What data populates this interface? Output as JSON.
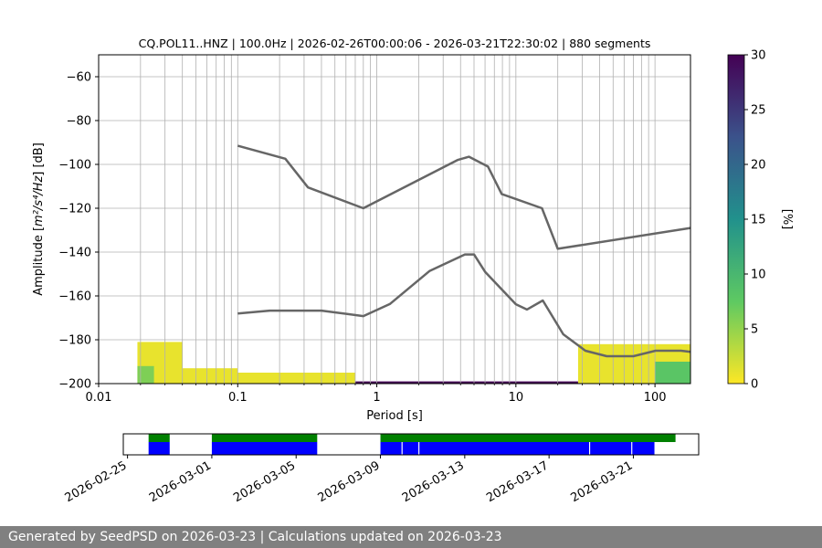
{
  "footer": {
    "text": "Generated by SeedPSD on 2026-03-23 | Calculations updated on 2026-03-23"
  },
  "colors": {
    "noise_model": "#666666",
    "grid": "#b0b0b0",
    "data_available": "#008000",
    "data_used": "#0000ff",
    "colorbar": [
      "#fde725",
      "#5ec962",
      "#21918c",
      "#3b528b",
      "#440154"
    ]
  },
  "chart_data": [
    {
      "type": "heatmap",
      "title": "CQ.POL11..HNZ | 100.0Hz | 2026-02-26T00:00:06 - 2026-03-21T22:30:02 | 880 segments",
      "xlabel": "Period [s]",
      "ylabel_prefix": "Amplitude [",
      "ylabel_math": "m²/s⁴/Hz",
      "ylabel_suffix": "] [dB]",
      "x_scale": "log",
      "xlim": [
        0.01,
        180
      ],
      "ylim": [
        -200,
        -50
      ],
      "x_ticks": [
        0.01,
        0.1,
        1,
        10,
        100
      ],
      "x_tick_labels": [
        "0.01",
        "0.1",
        "1",
        "10",
        "100"
      ],
      "y_ticks": [
        -200,
        -180,
        -160,
        -140,
        -120,
        -100,
        -80,
        -60
      ],
      "y_tick_labels": [
        "−200",
        "−180",
        "−160",
        "−140",
        "−120",
        "−100",
        "−80",
        "−60"
      ],
      "grid": true,
      "colorbar": {
        "label": "[%]",
        "range": [
          0,
          30
        ],
        "ticks": [
          0,
          5,
          10,
          15,
          20,
          25,
          30
        ],
        "tick_labels": [
          "0",
          "5",
          "10",
          "15",
          "20",
          "25",
          "30"
        ]
      },
      "noise_models": [
        {
          "name": "NHNM",
          "x": [
            0.1,
            0.22,
            0.32,
            0.8,
            3.8,
            4.6,
            6.3,
            7.9,
            15.4,
            20.0,
            180
          ],
          "y": [
            -91.5,
            -97.4,
            -110.5,
            -120.0,
            -98.0,
            -96.5,
            -101.0,
            -113.5,
            -120.0,
            -138.5,
            -129.0
          ]
        },
        {
          "name": "NLNM",
          "x": [
            0.1,
            0.17,
            0.4,
            0.8,
            1.24,
            2.4,
            4.3,
            5.0,
            6.0,
            10.0,
            12.0,
            15.6,
            21.9,
            31.6,
            45.0,
            70.0,
            101.0,
            154.0,
            180
          ],
          "y": [
            -168.0,
            -166.7,
            -166.7,
            -169.2,
            -163.7,
            -148.6,
            -141.1,
            -141.1,
            -149.0,
            -163.8,
            -166.2,
            -162.1,
            -177.5,
            -185.0,
            -187.5,
            -187.5,
            -185.0,
            -185.0,
            -185.5
          ]
        }
      ],
      "psd_cells": [
        {
          "x_range": [
            0.019,
            0.04
          ],
          "y_range": [
            -200,
            -181
          ],
          "percent": 1
        },
        {
          "x_range": [
            0.019,
            0.025
          ],
          "y_range": [
            -200,
            -192
          ],
          "percent": 6
        },
        {
          "x_range": [
            0.04,
            0.1
          ],
          "y_range": [
            -200,
            -193
          ],
          "percent": 1
        },
        {
          "x_range": [
            0.1,
            0.7
          ],
          "y_range": [
            -200,
            -195
          ],
          "percent": 1
        },
        {
          "x_range": [
            0.7,
            28
          ],
          "y_range": [
            -200,
            -199
          ],
          "percent": 30
        },
        {
          "x_range": [
            28,
            180
          ],
          "y_range": [
            -200,
            -182
          ],
          "percent": 1
        },
        {
          "x_range": [
            100,
            180
          ],
          "y_range": [
            -200,
            -190
          ],
          "percent": 8
        }
      ]
    },
    {
      "type": "timeline",
      "x_tick_labels": [
        "2026-02-25",
        "2026-03-01",
        "2026-03-05",
        "2026-03-09",
        "2026-03-13",
        "2026-03-17",
        "2026-03-21"
      ],
      "x_ticks_day": [
        0,
        4,
        8,
        12,
        16,
        20,
        24
      ],
      "xlim_day": [
        -0.2,
        27.1
      ],
      "available_segments": [
        [
          1.0,
          2.0
        ],
        [
          4.0,
          9.0
        ],
        [
          12.0,
          26.0
        ]
      ],
      "used_segments": [
        [
          1.0,
          2.0
        ],
        [
          4.0,
          9.0
        ],
        [
          12.0,
          13.0
        ],
        [
          13.05,
          13.8
        ],
        [
          13.85,
          21.9
        ],
        [
          21.95,
          23.9
        ],
        [
          23.95,
          25.0
        ]
      ]
    }
  ]
}
